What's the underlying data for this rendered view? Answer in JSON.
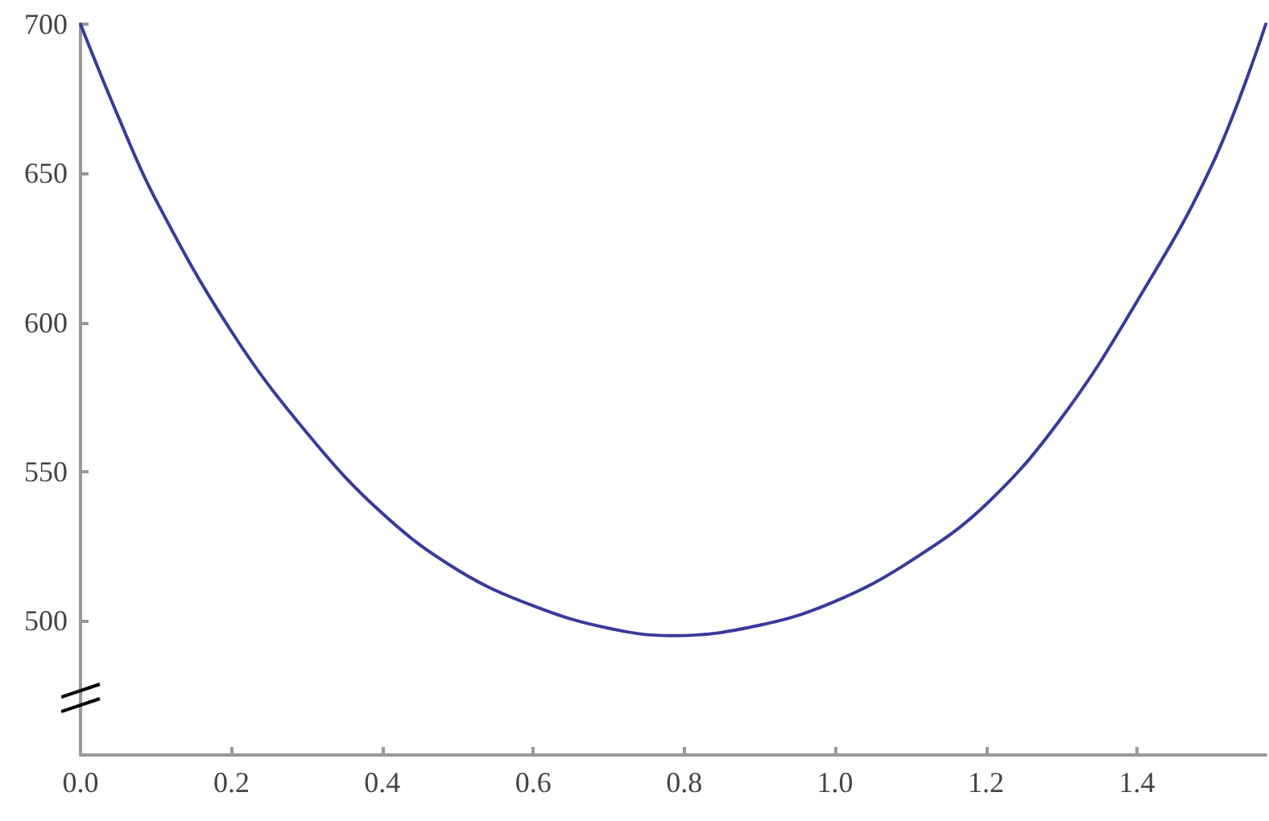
{
  "chart_data": {
    "type": "line",
    "x": [
      0,
      0.05,
      0.1,
      0.2,
      0.3,
      0.4,
      0.5,
      0.6,
      0.7,
      0.785,
      0.9,
      1.0,
      1.1,
      1.2,
      1.3,
      1.4,
      1.5,
      1.5708
    ],
    "series": [
      {
        "color": "#3a3a9a",
        "values": [
          700,
          669,
          641,
          597,
          563,
          536,
          517,
          505,
          497.5,
          495,
          498.5,
          506.5,
          520,
          539,
          568,
          607,
          653,
          700
        ]
      }
    ],
    "xlim": [
      0,
      1.5708
    ],
    "xticks": [
      {
        "value": 0,
        "label": "0.0"
      },
      0.2,
      0.4,
      0.6,
      0.8,
      {
        "value": 1,
        "label": "1.0"
      },
      1.2,
      1.4
    ],
    "ylim": [
      455,
      700
    ],
    "yticks": [
      500,
      550,
      600,
      650,
      700
    ],
    "grid": false,
    "marker": "none",
    "line_style": "solid"
  }
}
